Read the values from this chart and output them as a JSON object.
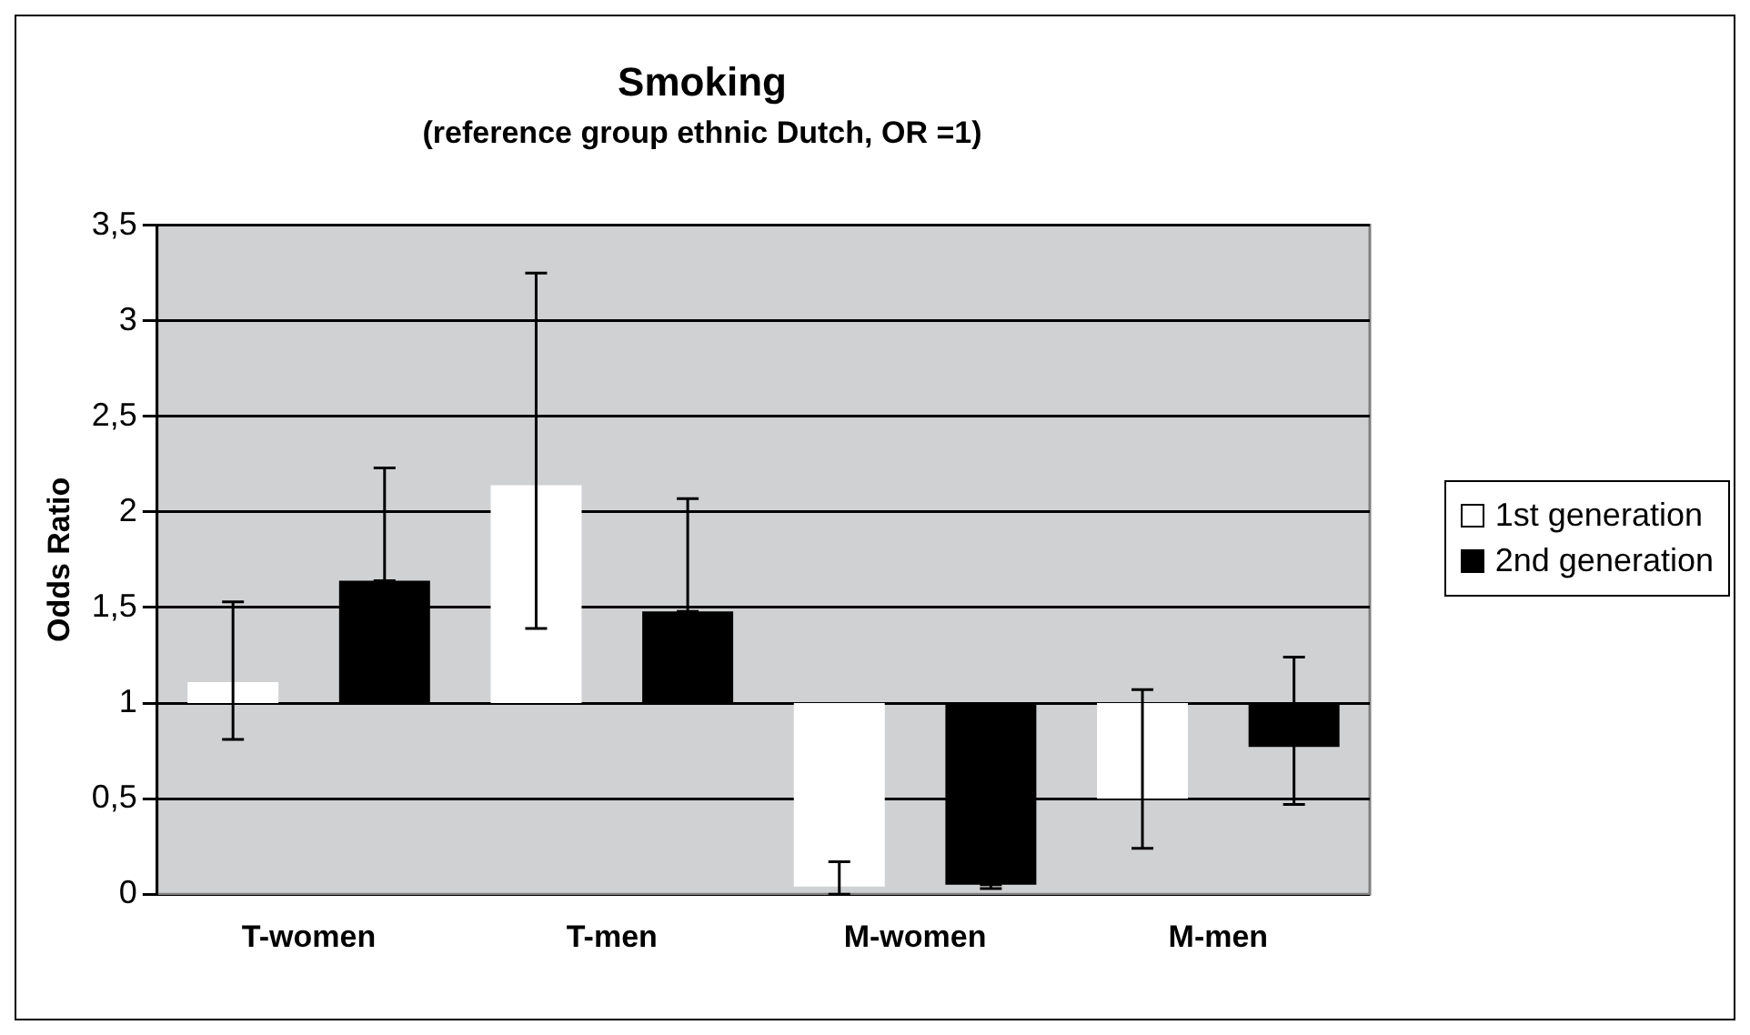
{
  "chart_data": {
    "type": "bar",
    "title": "Smoking",
    "subtitle": "(reference group ethnic Dutch, OR =1)",
    "ylabel": "Odds Ratio",
    "categories": [
      "T-women",
      "T-men",
      "M-women",
      "M-men"
    ],
    "series": [
      {
        "name": "1st generation",
        "color": "#ffffff",
        "base": [
          1,
          1,
          1,
          1
        ],
        "values": [
          0.11,
          1.14,
          -0.96,
          -0.5
        ],
        "errors": [
          [
            0.81,
            1.53
          ],
          [
            1.39,
            3.25
          ],
          [
            0.0,
            0.17
          ],
          [
            0.24,
            1.07
          ]
        ]
      },
      {
        "name": "2nd generation",
        "color": "#000000",
        "base": [
          1,
          1,
          1,
          1
        ],
        "values": [
          0.64,
          0.48,
          -0.95,
          -0.23
        ],
        "errors": [
          [
            1.64,
            2.23
          ],
          [
            1.48,
            2.07
          ],
          [
            0.03,
            0.05
          ],
          [
            0.47,
            1.24
          ]
        ]
      }
    ],
    "ylim": [
      0,
      3.5
    ],
    "yticks": [
      {
        "value": 0,
        "label": "0"
      },
      {
        "value": 0.5,
        "label": "0,5"
      },
      {
        "value": 1,
        "label": "1"
      },
      {
        "value": 1.5,
        "label": "1,5"
      },
      {
        "value": 2,
        "label": "2"
      },
      {
        "value": 2.5,
        "label": "2,5"
      },
      {
        "value": 3,
        "label": "3"
      },
      {
        "value": 3.5,
        "label": "3,5"
      }
    ],
    "grid": "y",
    "legend": "right"
  }
}
